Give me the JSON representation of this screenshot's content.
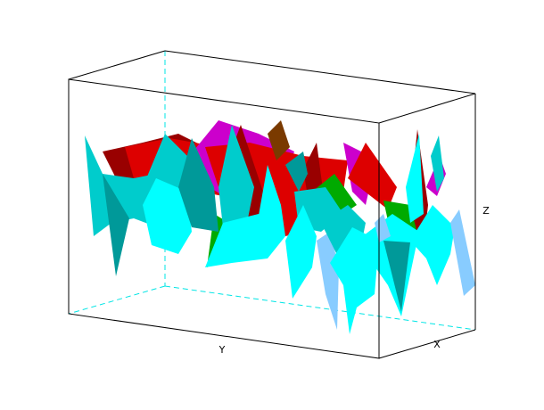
{
  "chart_data": {
    "type": "surface",
    "xlabel": "X",
    "ylabel": "Y",
    "zlabel": "Z"
  }
}
